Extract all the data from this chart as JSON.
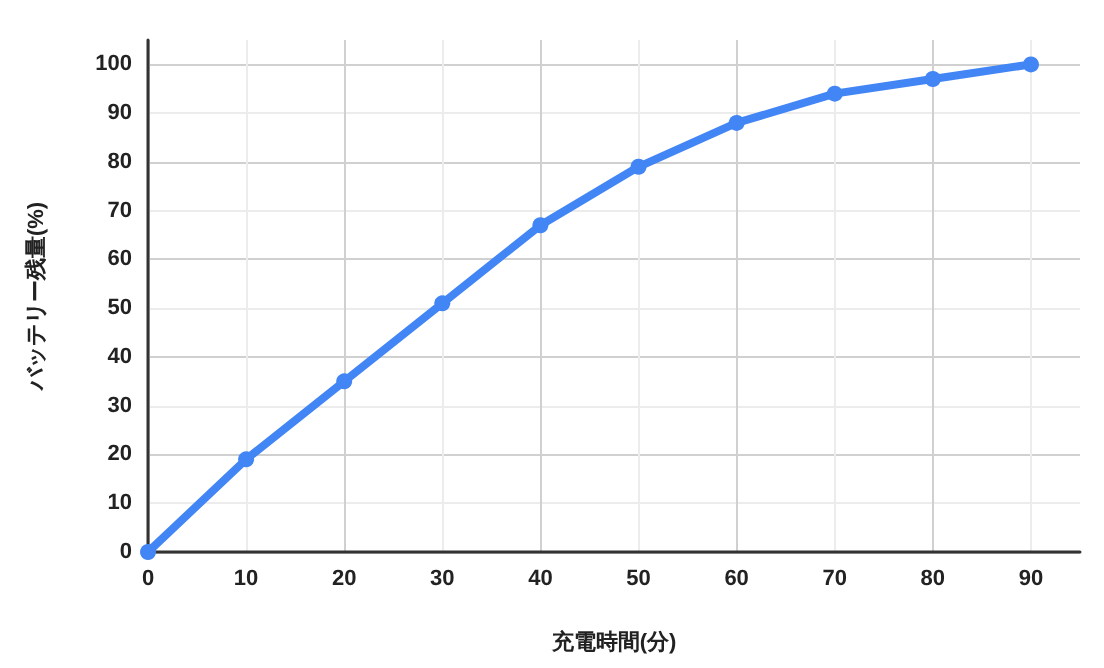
{
  "chart_data": {
    "type": "line",
    "xlabel": "充電時間(分)",
    "ylabel": "バッテリー残量(%)",
    "x": [
      0,
      10,
      20,
      30,
      40,
      50,
      60,
      70,
      80,
      90
    ],
    "series": [
      {
        "color": "#4285f4",
        "values": [
          0,
          19,
          35,
          51,
          67,
          79,
          88,
          94,
          97,
          100
        ]
      }
    ],
    "xlim": [
      0,
      95
    ],
    "xticks": [
      0,
      10,
      20,
      30,
      40,
      50,
      60,
      70,
      80,
      90
    ],
    "ylim": [
      0,
      105
    ],
    "yticks": [
      0,
      10,
      20,
      30,
      40,
      50,
      60,
      70,
      80,
      90,
      100
    ],
    "grid": true,
    "marker": "circle",
    "line_style": "solid"
  }
}
